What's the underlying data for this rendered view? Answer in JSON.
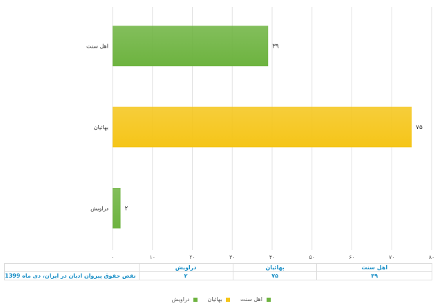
{
  "chart_data": {
    "type": "bar",
    "orientation": "horizontal",
    "categories": [
      "اهل سنت",
      "بهائیان",
      "دراویش"
    ],
    "values": [
      39,
      75,
      2
    ],
    "value_labels": [
      "۳۹",
      "۷۵",
      "۲"
    ],
    "colors": [
      "#6db33f",
      "#f5c518",
      "#6db33f"
    ],
    "xlim": [
      0,
      80
    ],
    "xticks": [
      0,
      10,
      20,
      30,
      40,
      50,
      60,
      70,
      80
    ],
    "xtick_labels": [
      "۰",
      "۱۰",
      "۲۰",
      "۳۰",
      "۴۰",
      "۵۰",
      "۶۰",
      "۷۰",
      "۸۰"
    ],
    "grid": true,
    "direction": "rtl",
    "title": "",
    "xlabel": "",
    "ylabel": "",
    "legend_placement": "bottom"
  },
  "table": {
    "caption": "نقض حقوق پیروان ادیان در ایران، دی ماه 1399",
    "headers": [
      "دراویش",
      "بهائیان",
      "اهل سنت"
    ],
    "values": [
      "۲",
      "۷۵",
      "۳۹"
    ]
  },
  "legend": [
    {
      "label": "اهل سنت",
      "color": "#6db33f"
    },
    {
      "label": "بهائیان",
      "color": "#f5c518"
    },
    {
      "label": "دراویش",
      "color": "#6db33f"
    }
  ]
}
